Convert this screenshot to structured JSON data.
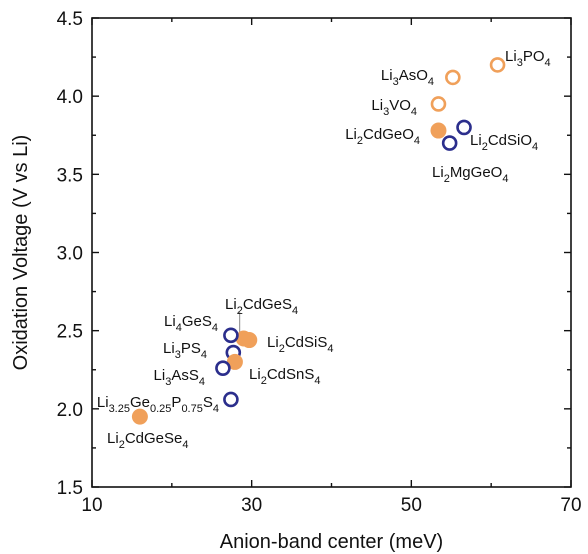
{
  "chart_data": {
    "type": "scatter",
    "xlabel": "Anion-band center (meV)",
    "ylabel": "Oxidation Voltage (V vs Li)",
    "xlim": [
      10,
      70
    ],
    "ylim": [
      1.5,
      4.5
    ],
    "xticks": [
      10,
      30,
      50,
      70
    ],
    "yticks": [
      1.5,
      2.0,
      2.5,
      3.0,
      3.5,
      4.0,
      4.5
    ],
    "xtick_labels": [
      "10",
      "30",
      "50",
      "70"
    ],
    "ytick_labels": [
      "1.5",
      "2.0",
      "2.5",
      "3.0",
      "3.5",
      "4.0",
      "4.5"
    ],
    "grid": false,
    "colors": {
      "orange": "#f0a05a",
      "navy": "#2b2e8c",
      "axis": "#111111"
    },
    "points": [
      {
        "formula": [
          [
            "Li"
          ],
          [
            "3",
            "sub"
          ],
          [
            "PO"
          ],
          [
            "4",
            "sub"
          ]
        ],
        "x": 60.8,
        "y": 4.2,
        "color": "orange",
        "filled": false
      },
      {
        "formula": [
          [
            "Li"
          ],
          [
            "3",
            "sub"
          ],
          [
            "AsO"
          ],
          [
            "4",
            "sub"
          ]
        ],
        "x": 55.2,
        "y": 4.12,
        "color": "orange",
        "filled": false
      },
      {
        "formula": [
          [
            "Li"
          ],
          [
            "3",
            "sub"
          ],
          [
            "VO"
          ],
          [
            "4",
            "sub"
          ]
        ],
        "x": 53.4,
        "y": 3.95,
        "color": "orange",
        "filled": false
      },
      {
        "formula": [
          [
            "Li"
          ],
          [
            "2",
            "sub"
          ],
          [
            "CdSiO"
          ],
          [
            "4",
            "sub"
          ]
        ],
        "x": 56.6,
        "y": 3.8,
        "color": "navy",
        "filled": false
      },
      {
        "formula": [
          [
            "Li"
          ],
          [
            "2",
            "sub"
          ],
          [
            "CdGeO"
          ],
          [
            "4",
            "sub"
          ]
        ],
        "x": 53.4,
        "y": 3.78,
        "color": "orange",
        "filled": true
      },
      {
        "formula": [
          [
            "Li"
          ],
          [
            "2",
            "sub"
          ],
          [
            "MgGeO"
          ],
          [
            "4",
            "sub"
          ]
        ],
        "x": 54.8,
        "y": 3.7,
        "color": "navy",
        "filled": false
      },
      {
        "formula": [
          [
            "Li"
          ],
          [
            "2",
            "sub"
          ],
          [
            "CdGeS"
          ],
          [
            "4",
            "sub"
          ]
        ],
        "x": 29.0,
        "y": 2.45,
        "color": "orange",
        "filled": true
      },
      {
        "formula": [
          [
            "Li"
          ],
          [
            "4",
            "sub"
          ],
          [
            "GeS"
          ],
          [
            "4",
            "sub"
          ]
        ],
        "x": 27.4,
        "y": 2.47,
        "color": "navy",
        "filled": false
      },
      {
        "formula": [
          [
            "Li"
          ],
          [
            "2",
            "sub"
          ],
          [
            "CdSiS"
          ],
          [
            "4",
            "sub"
          ]
        ],
        "x": 29.7,
        "y": 2.44,
        "color": "orange",
        "filled": true
      },
      {
        "formula": [
          [
            "Li"
          ],
          [
            "3",
            "sub"
          ],
          [
            "PS"
          ],
          [
            "4",
            "sub"
          ]
        ],
        "x": 27.7,
        "y": 2.36,
        "color": "navy",
        "filled": false
      },
      {
        "formula": [
          [
            "Li"
          ],
          [
            "2",
            "sub"
          ],
          [
            "CdSnS"
          ],
          [
            "4",
            "sub"
          ]
        ],
        "x": 27.9,
        "y": 2.3,
        "color": "orange",
        "filled": true
      },
      {
        "formula": [
          [
            "Li"
          ],
          [
            "3",
            "sub"
          ],
          [
            "AsS"
          ],
          [
            "4",
            "sub"
          ]
        ],
        "x": 26.4,
        "y": 2.26,
        "color": "navy",
        "filled": false
      },
      {
        "formula": [
          [
            "Li"
          ],
          [
            "3.25",
            "sub"
          ],
          [
            "Ge"
          ],
          [
            "0.25",
            "sub"
          ],
          [
            "P"
          ],
          [
            "0.75",
            "sub"
          ],
          [
            "S"
          ],
          [
            "4",
            "sub"
          ]
        ],
        "x": 27.4,
        "y": 2.06,
        "color": "navy",
        "filled": false
      },
      {
        "formula": [
          [
            "Li"
          ],
          [
            "2",
            "sub"
          ],
          [
            "CdGeSe"
          ],
          [
            "4",
            "sub"
          ]
        ],
        "x": 16.0,
        "y": 1.95,
        "color": "orange",
        "filled": true
      }
    ]
  }
}
